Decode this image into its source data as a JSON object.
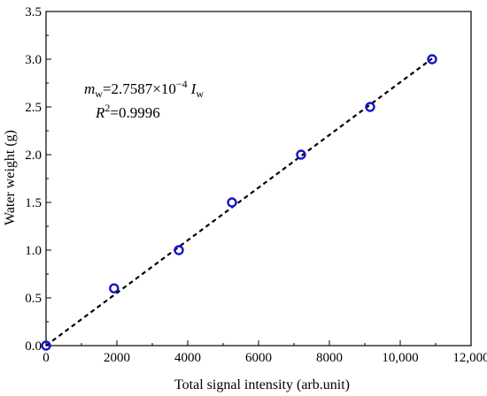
{
  "chart_data": {
    "type": "scatter",
    "xlabel": "Total signal intensity (arb.unit)",
    "ylabel": "Water weight (g)",
    "xlim": [
      0,
      12000
    ],
    "ylim": [
      0,
      3.5
    ],
    "xticks": [
      0,
      2000,
      4000,
      6000,
      8000,
      10000,
      12000
    ],
    "xtick_labels": [
      "0",
      "2000",
      "4000",
      "6000",
      "8000",
      "10,000",
      "12,000"
    ],
    "yticks": [
      0.0,
      0.5,
      1.0,
      1.5,
      2.0,
      2.5,
      3.0,
      3.5
    ],
    "ytick_labels": [
      "0.0",
      "0.5",
      "1.0",
      "1.5",
      "2.0",
      "2.5",
      "3.0",
      "3.5"
    ],
    "grid": false,
    "series": [
      {
        "marker": "open-circle",
        "color": "#1515c8",
        "x": [
          0,
          1920,
          3750,
          5250,
          7200,
          9150,
          10900
        ],
        "y": [
          0.0,
          0.6,
          1.0,
          1.5,
          2.0,
          2.5,
          3.0
        ]
      }
    ],
    "fit_line": {
      "style": "dashed",
      "color": "#000000",
      "slope": 0.00027587,
      "x_range": [
        0,
        10900
      ]
    },
    "annotation": {
      "equation": {
        "m": "m",
        "m_sub": "w",
        "eq": "=2.7587×10",
        "exp": "−4",
        "I": "I",
        "I_sub": "w"
      },
      "r2": {
        "R": "R",
        "sup": "2",
        "val": "=0.9996"
      }
    }
  }
}
